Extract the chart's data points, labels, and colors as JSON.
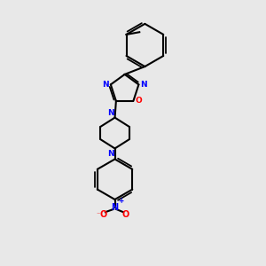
{
  "bg_color": "#e8e8e8",
  "bond_color": "#000000",
  "N_color": "#0000ff",
  "O_color": "#ff0000",
  "lw": 1.5,
  "figsize": [
    3.0,
    3.0
  ],
  "dpi": 100,
  "xlim": [
    -2.5,
    3.5
  ],
  "ylim": [
    -5.5,
    5.5
  ]
}
